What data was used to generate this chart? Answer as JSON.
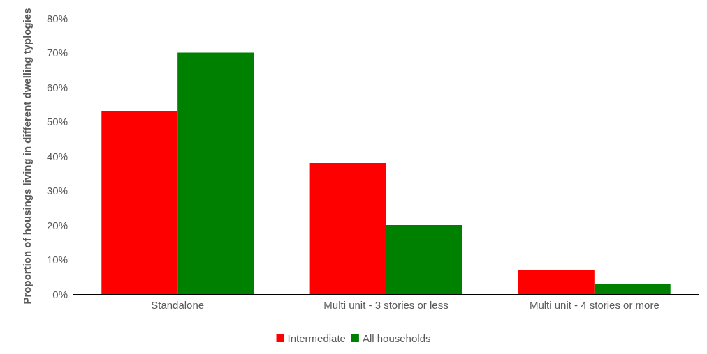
{
  "chart_data": {
    "type": "bar",
    "ylabel": "Proportion of housings living in different dwelling typlogies",
    "categories": [
      "Standalone",
      "Multi unit - 3 stories or less",
      "Multi unit - 4 stories or more"
    ],
    "series": [
      {
        "name": "Intermediate",
        "color": "#ff0000",
        "values": [
          53,
          38,
          7
        ]
      },
      {
        "name": "All households",
        "color": "#008000",
        "values": [
          70,
          20,
          3
        ]
      }
    ],
    "ylim": [
      0,
      80
    ],
    "yticks": [
      {
        "value": 0,
        "label": "0%"
      },
      {
        "value": 10,
        "label": "10%"
      },
      {
        "value": 20,
        "label": "20%"
      },
      {
        "value": 30,
        "label": "30%"
      },
      {
        "value": 40,
        "label": "40%"
      },
      {
        "value": 50,
        "label": "50%"
      },
      {
        "value": 60,
        "label": "60%"
      },
      {
        "value": 70,
        "label": "70%"
      },
      {
        "value": 80,
        "label": "80%"
      }
    ],
    "grid": false,
    "legend": "bottom"
  }
}
